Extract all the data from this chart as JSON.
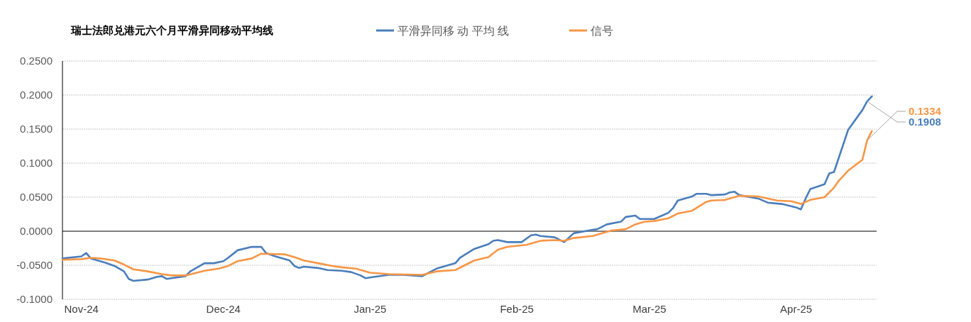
{
  "chart_data": {
    "type": "line",
    "title": "瑞士法郎兑港元六个月平滑异同移动平均线",
    "xlim": [
      "2024-10-28",
      "2025-04-18"
    ],
    "ylim": [
      -0.1,
      0.25
    ],
    "xticks": [
      {
        "value": "2024-11-01",
        "label": "Nov-24"
      },
      {
        "value": "2024-12-01",
        "label": "Dec-24"
      },
      {
        "value": "2025-01-01",
        "label": "Jan-25"
      },
      {
        "value": "2025-02-01",
        "label": "Feb-25"
      },
      {
        "value": "2025-03-01",
        "label": "Mar-25"
      },
      {
        "value": "2025-04-01",
        "label": "Apr-25"
      }
    ],
    "yticks": [
      {
        "value": -0.1,
        "label": "-0.1000"
      },
      {
        "value": -0.05,
        "label": "-0.0500"
      },
      {
        "value": 0,
        "label": "0.0000"
      },
      {
        "value": 0.05,
        "label": "0.0500"
      },
      {
        "value": 0.1,
        "label": "0.1000"
      },
      {
        "value": 0.15,
        "label": "0.1500"
      },
      {
        "value": 0.2,
        "label": "0.2000"
      },
      {
        "value": 0.25,
        "label": "0.2500"
      }
    ],
    "grid": "y",
    "legend": "top",
    "line_style": "solid",
    "marker": "none",
    "series": [
      {
        "name": "平滑异同移 动 平均 线",
        "color": "#4a7ebb",
        "x": [
          "2024-10-28",
          "2024-11-01",
          "2024-11-02",
          "2024-11-03",
          "2024-11-06",
          "2024-11-08",
          "2024-11-10",
          "2024-11-11",
          "2024-11-12",
          "2024-11-15",
          "2024-11-17",
          "2024-11-18",
          "2024-11-19",
          "2024-11-23",
          "2024-11-24",
          "2024-11-27",
          "2024-11-29",
          "2024-12-01",
          "2024-12-02",
          "2024-12-04",
          "2024-12-07",
          "2024-12-09",
          "2024-12-10",
          "2024-12-12",
          "2024-12-15",
          "2024-12-16",
          "2024-12-17",
          "2024-12-18",
          "2024-12-21",
          "2024-12-23",
          "2024-12-26",
          "2024-12-28",
          "2024-12-30",
          "2024-12-31",
          "2025-01-02",
          "2025-01-05",
          "2025-01-08",
          "2025-01-12",
          "2025-01-15",
          "2025-01-19",
          "2025-01-20",
          "2025-01-23",
          "2025-01-26",
          "2025-01-27",
          "2025-01-28",
          "2025-01-30",
          "2025-02-02",
          "2025-02-04",
          "2025-02-05",
          "2025-02-06",
          "2025-02-09",
          "2025-02-11",
          "2025-02-13",
          "2025-02-17",
          "2025-02-18",
          "2025-02-20",
          "2025-02-23",
          "2025-02-24",
          "2025-02-26",
          "2025-02-27",
          "2025-03-02",
          "2025-03-04",
          "2025-03-05",
          "2025-03-06",
          "2025-03-07",
          "2025-03-10",
          "2025-03-11",
          "2025-03-13",
          "2025-03-14",
          "2025-03-17",
          "2025-03-18",
          "2025-03-19",
          "2025-03-20",
          "2025-03-24",
          "2025-03-26",
          "2025-03-29",
          "2025-04-01",
          "2025-04-02",
          "2025-04-03",
          "2025-04-04",
          "2025-04-07",
          "2025-04-08",
          "2025-04-09",
          "2025-04-12",
          "2025-04-15",
          "2025-04-16",
          "2025-04-17"
        ],
        "values": [
          -0.04,
          -0.037,
          -0.032,
          -0.04,
          -0.046,
          -0.051,
          -0.059,
          -0.07,
          -0.073,
          -0.071,
          -0.067,
          -0.066,
          -0.07,
          -0.066,
          -0.059,
          -0.047,
          -0.047,
          -0.044,
          -0.039,
          -0.028,
          -0.023,
          -0.023,
          -0.032,
          -0.037,
          -0.043,
          -0.051,
          -0.054,
          -0.052,
          -0.054,
          -0.057,
          -0.058,
          -0.06,
          -0.065,
          -0.069,
          -0.067,
          -0.064,
          -0.064,
          -0.066,
          -0.055,
          -0.047,
          -0.039,
          -0.026,
          -0.019,
          -0.014,
          -0.013,
          -0.016,
          -0.016,
          -0.006,
          -0.005,
          -0.007,
          -0.009,
          -0.016,
          -0.003,
          0.002,
          0.003,
          0.01,
          0.014,
          0.021,
          0.023,
          0.018,
          0.018,
          0.024,
          0.027,
          0.034,
          0.045,
          0.051,
          0.055,
          0.055,
          0.053,
          0.054,
          0.057,
          0.058,
          0.053,
          0.048,
          0.042,
          0.04,
          0.035,
          0.032,
          0.048,
          0.062,
          0.069,
          0.085,
          0.087,
          0.149,
          0.178,
          0.1908,
          0.198
        ],
        "value_labels": [
          null,
          null,
          null,
          null,
          null,
          null,
          null,
          null,
          null,
          null,
          null,
          null,
          null,
          null,
          null,
          null,
          null,
          null,
          null,
          null,
          null,
          null,
          null,
          null,
          null,
          null,
          null,
          null,
          null,
          null,
          null,
          null,
          null,
          null,
          null,
          null,
          null,
          null,
          null,
          null,
          null,
          null,
          null,
          null,
          null,
          null,
          null,
          null,
          null,
          null,
          null,
          null,
          null,
          null,
          null,
          null,
          null,
          null,
          null,
          null,
          null,
          null,
          null,
          null,
          null,
          null,
          null,
          null,
          null,
          null,
          null,
          null,
          null,
          null,
          null,
          null,
          null,
          null,
          null,
          null,
          null,
          null,
          null,
          null,
          null,
          "0.1908",
          null
        ]
      },
      {
        "name": "信号",
        "color": "#f79646",
        "x": [
          "2024-10-28",
          "2024-11-01",
          "2024-11-03",
          "2024-11-05",
          "2024-11-08",
          "2024-11-10",
          "2024-11-12",
          "2024-11-15",
          "2024-11-18",
          "2024-11-20",
          "2024-11-23",
          "2024-11-27",
          "2024-11-30",
          "2024-12-02",
          "2024-12-04",
          "2024-12-07",
          "2024-12-09",
          "2024-12-14",
          "2024-12-16",
          "2024-12-18",
          "2024-12-21",
          "2024-12-24",
          "2024-12-26",
          "2024-12-29",
          "2025-01-01",
          "2025-01-05",
          "2025-01-12",
          "2025-01-15",
          "2025-01-19",
          "2025-01-23",
          "2025-01-26",
          "2025-01-28",
          "2025-01-30",
          "2025-02-03",
          "2025-02-06",
          "2025-02-09",
          "2025-02-11",
          "2025-02-13",
          "2025-02-17",
          "2025-02-21",
          "2025-02-24",
          "2025-02-26",
          "2025-02-28",
          "2025-03-02",
          "2025-03-05",
          "2025-03-07",
          "2025-03-10",
          "2025-03-13",
          "2025-03-14",
          "2025-03-17",
          "2025-03-20",
          "2025-03-24",
          "2025-03-28",
          "2025-03-31",
          "2025-04-02",
          "2025-04-04",
          "2025-04-07",
          "2025-04-09",
          "2025-04-10",
          "2025-04-12",
          "2025-04-15",
          "2025-04-16",
          "2025-04-17"
        ],
        "values": [
          -0.042,
          -0.041,
          -0.039,
          -0.04,
          -0.043,
          -0.049,
          -0.056,
          -0.059,
          -0.063,
          -0.065,
          -0.065,
          -0.058,
          -0.055,
          -0.051,
          -0.044,
          -0.04,
          -0.033,
          -0.034,
          -0.038,
          -0.043,
          -0.047,
          -0.051,
          -0.053,
          -0.055,
          -0.061,
          -0.063,
          -0.064,
          -0.059,
          -0.057,
          -0.043,
          -0.038,
          -0.027,
          -0.023,
          -0.02,
          -0.014,
          -0.013,
          -0.014,
          -0.01,
          -0.007,
          0.001,
          0.003,
          0.01,
          0.014,
          0.015,
          0.019,
          0.026,
          0.03,
          0.043,
          0.045,
          0.046,
          0.052,
          0.051,
          0.045,
          0.044,
          0.04,
          0.046,
          0.05,
          0.064,
          0.074,
          0.089,
          0.105,
          0.1334,
          0.147
        ],
        "value_labels": [
          null,
          null,
          null,
          null,
          null,
          null,
          null,
          null,
          null,
          null,
          null,
          null,
          null,
          null,
          null,
          null,
          null,
          null,
          null,
          null,
          null,
          null,
          null,
          null,
          null,
          null,
          null,
          null,
          null,
          null,
          null,
          null,
          null,
          null,
          null,
          null,
          null,
          null,
          null,
          null,
          null,
          null,
          null,
          null,
          null,
          null,
          null,
          null,
          null,
          null,
          null,
          null,
          null,
          null,
          null,
          null,
          null,
          null,
          null,
          null,
          null,
          "0.1334",
          null
        ]
      }
    ]
  }
}
